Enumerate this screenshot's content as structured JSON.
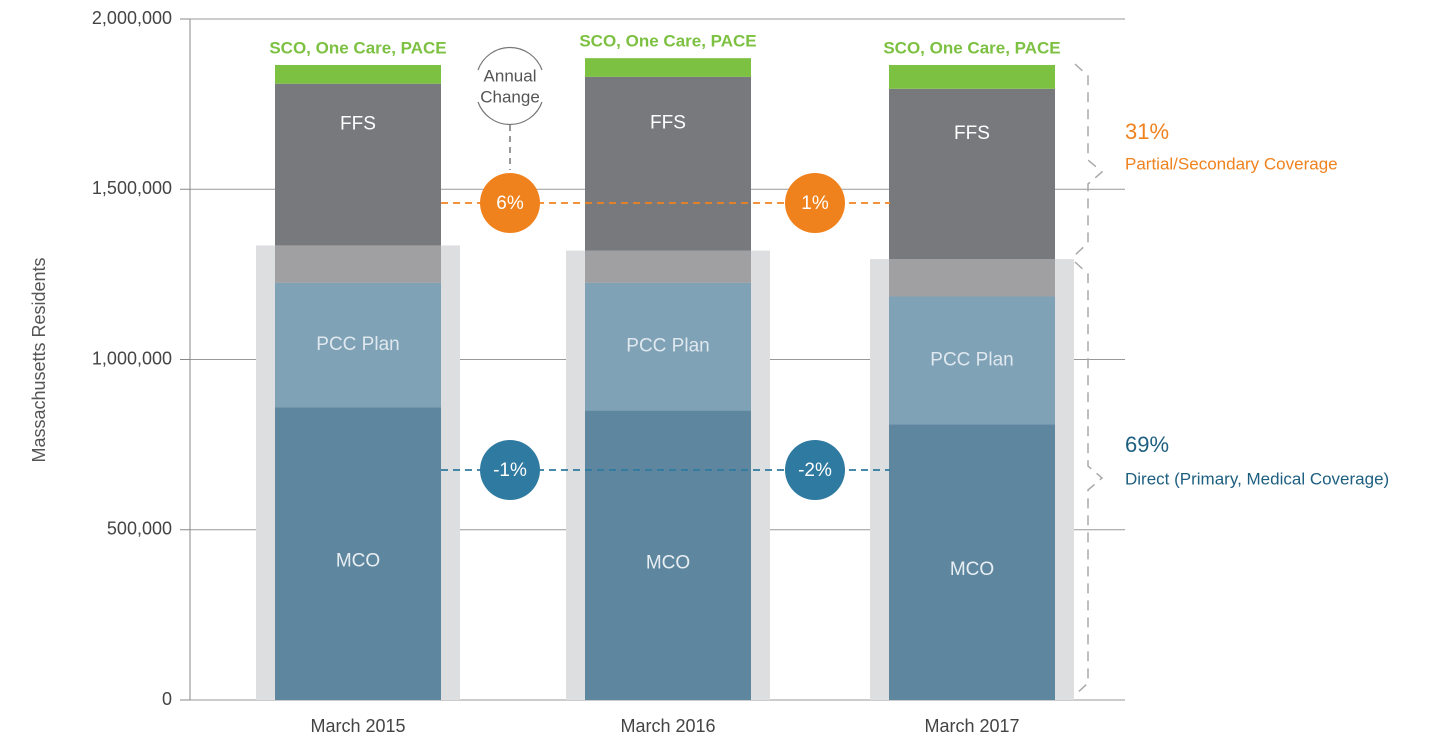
{
  "chart_data": {
    "type": "bar",
    "stacked": true,
    "y_label": "Massachusetts Residents",
    "categories": [
      "March 2015",
      "March 2016",
      "March 2017"
    ],
    "series": [
      {
        "name": "MCO",
        "color": "#5e879f",
        "values": [
          860000,
          850000,
          810000
        ]
      },
      {
        "name": "PCC Plan",
        "color": "#7fa2b7",
        "values": [
          365000,
          375000,
          375000
        ]
      },
      {
        "color": "#a0a0a3",
        "values": [
          110000,
          95000,
          110000
        ]
      },
      {
        "name": "FFS",
        "color": "#78797c",
        "values": [
          475000,
          510000,
          500000
        ]
      },
      {
        "name": "SCO, One Care, PACE",
        "color": "#7dc142",
        "values": [
          55000,
          55000,
          70000
        ]
      }
    ],
    "ylim": [
      0,
      2000000
    ],
    "yticks": [
      0,
      {
        "value": 500000,
        "label": "500,000"
      },
      {
        "value": 1000000,
        "label": "1,000,000"
      },
      {
        "value": 1500000,
        "label": "1,500,000"
      },
      {
        "value": 2000000,
        "label": "2,000,000"
      }
    ],
    "grid": true,
    "annual_change_label": [
      "Annual",
      "Change"
    ],
    "partial_changes": [
      "6%",
      "1%"
    ],
    "direct_changes": [
      "-1%",
      "-2%"
    ],
    "partial": {
      "share": "31%",
      "label": "Partial/Secondary Coverage",
      "color": "#f0821e"
    },
    "direct": {
      "share": "69%",
      "label": "Direct (Primary, Medical Coverage)",
      "color": "#1d5f80"
    }
  }
}
